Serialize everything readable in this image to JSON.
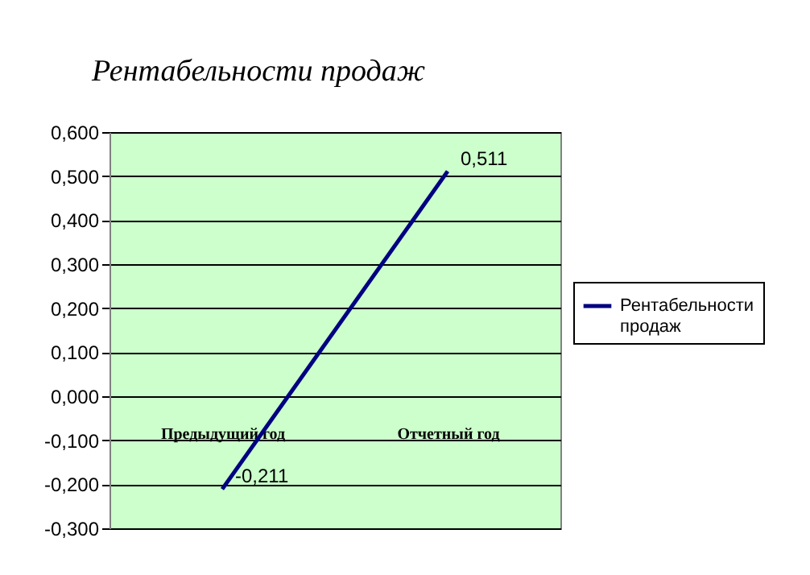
{
  "chart_data": {
    "type": "line",
    "title": "Рентабельности продаж",
    "categories": [
      "Предыдущий год",
      "Отчетный год"
    ],
    "series": [
      {
        "name": "Рентабельности продаж",
        "color": "#000080",
        "values": [
          -0.211,
          0.511
        ],
        "value_labels": [
          "-0,211",
          "0,511"
        ]
      }
    ],
    "ylim": [
      -0.3,
      0.6
    ],
    "yticks": [
      {
        "value": -0.3,
        "label": "-0,300"
      },
      {
        "value": -0.2,
        "label": "-0,200"
      },
      {
        "value": -0.1,
        "label": "-0,100"
      },
      {
        "value": 0,
        "label": "0,000"
      },
      {
        "value": 0.1,
        "label": "0,100"
      },
      {
        "value": 0.2,
        "label": "0,200"
      },
      {
        "value": 0.3,
        "label": "0,300"
      },
      {
        "value": 0.4,
        "label": "0,400"
      },
      {
        "value": 0.5,
        "label": "0,500"
      },
      {
        "value": 0.6,
        "label": "0,600"
      }
    ],
    "grid": "y",
    "legend": "right",
    "marker": "none",
    "line_style": "solid"
  }
}
